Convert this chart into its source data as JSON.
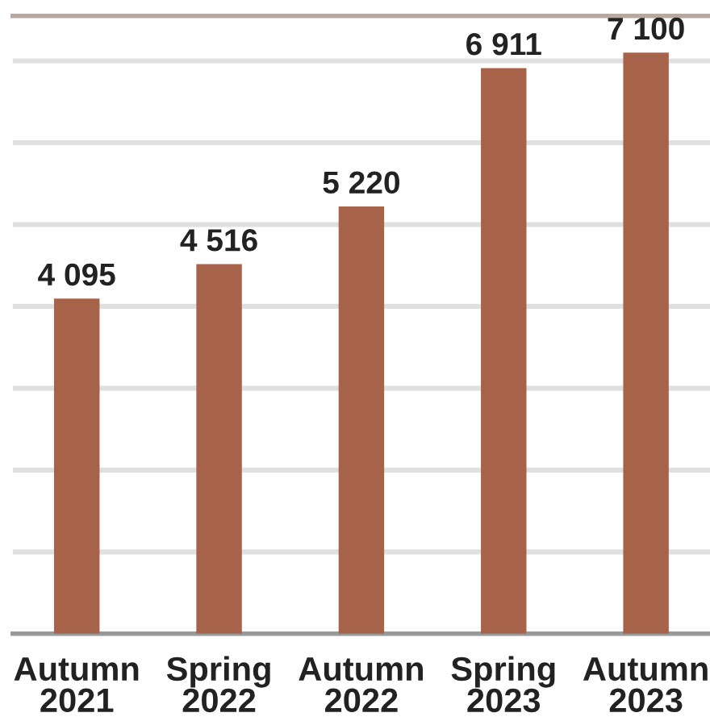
{
  "chart_data": {
    "type": "bar",
    "categories": [
      "Autumn\n2021",
      "Spring\n2022",
      "Autumn\n2022",
      "Spring\n2023",
      "Autumn\n2023"
    ],
    "values": [
      4095,
      4516,
      5220,
      6911,
      7100
    ],
    "color": "#a6634a",
    "data_labels": true,
    "value_labels": [
      "4 095",
      "4 516",
      "5 220",
      "6 911",
      "7 100"
    ],
    "ylim": [
      0,
      7550
    ],
    "yticks": [
      {
        "value": 1000,
        "label": null
      },
      {
        "value": 2000,
        "label": null
      },
      {
        "value": 3000,
        "label": null
      },
      {
        "value": 4000,
        "label": null
      },
      {
        "value": 5000,
        "label": null
      },
      {
        "value": 6000,
        "label": null
      },
      {
        "value": 7000,
        "label": null
      }
    ],
    "grid": "y",
    "tick_labels": "x"
  }
}
